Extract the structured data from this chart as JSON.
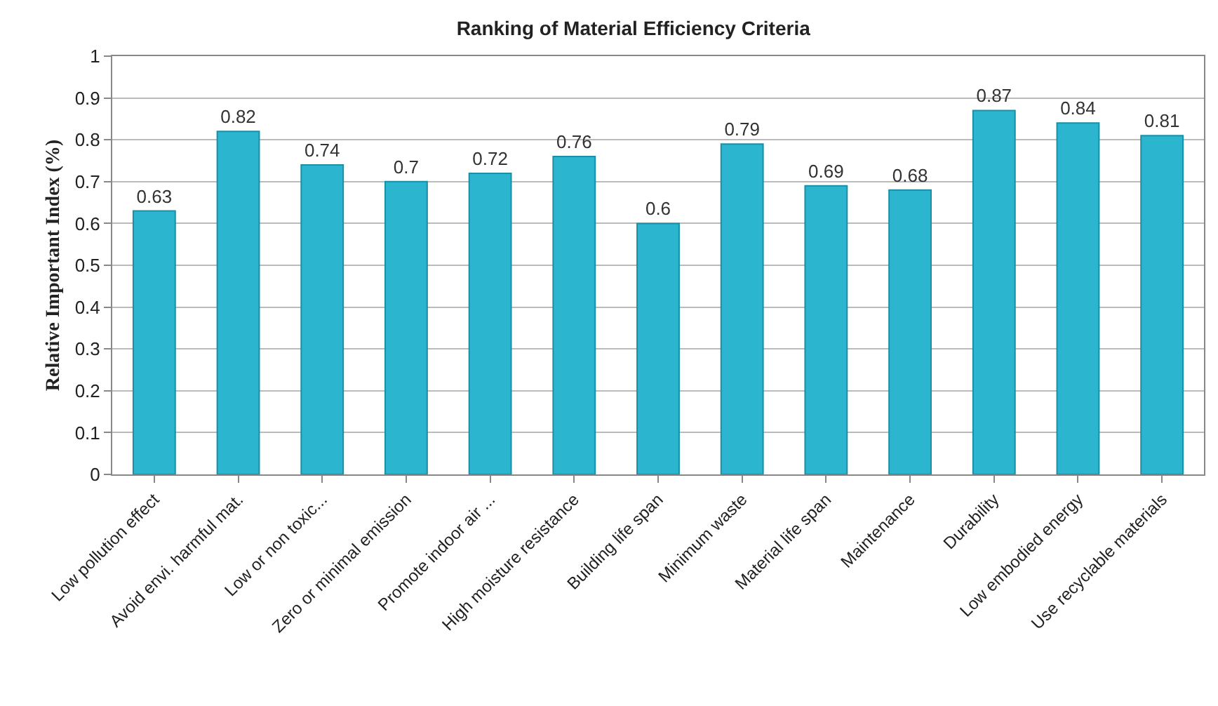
{
  "chart_data": {
    "type": "bar",
    "title": "Ranking of Material Efficiency Criteria",
    "ylabel": "Relative Important Index (%)",
    "categories": [
      "Low pollution effect",
      "Avoid envi. harmful mat.",
      "Low or non toxic...",
      "Zero or minimal emission",
      "Promote indoor air ...",
      "High moisture resistance",
      "Building life span",
      "Minimum waste",
      "Material life span",
      "Maintenance",
      "Durability",
      "Low embodied energy",
      "Use recyclable materials"
    ],
    "values": [
      0.63,
      0.82,
      0.74,
      0.7,
      0.72,
      0.76,
      0.6,
      0.79,
      0.69,
      0.68,
      0.87,
      0.84,
      0.81
    ],
    "color": "#2bb5cf",
    "data_labels": true,
    "ylim": [
      0,
      1
    ],
    "yticks": [
      0,
      0.1,
      0.2,
      0.3,
      0.4,
      0.5,
      0.6,
      0.7,
      0.8,
      0.9,
      1
    ],
    "grid": "y"
  }
}
